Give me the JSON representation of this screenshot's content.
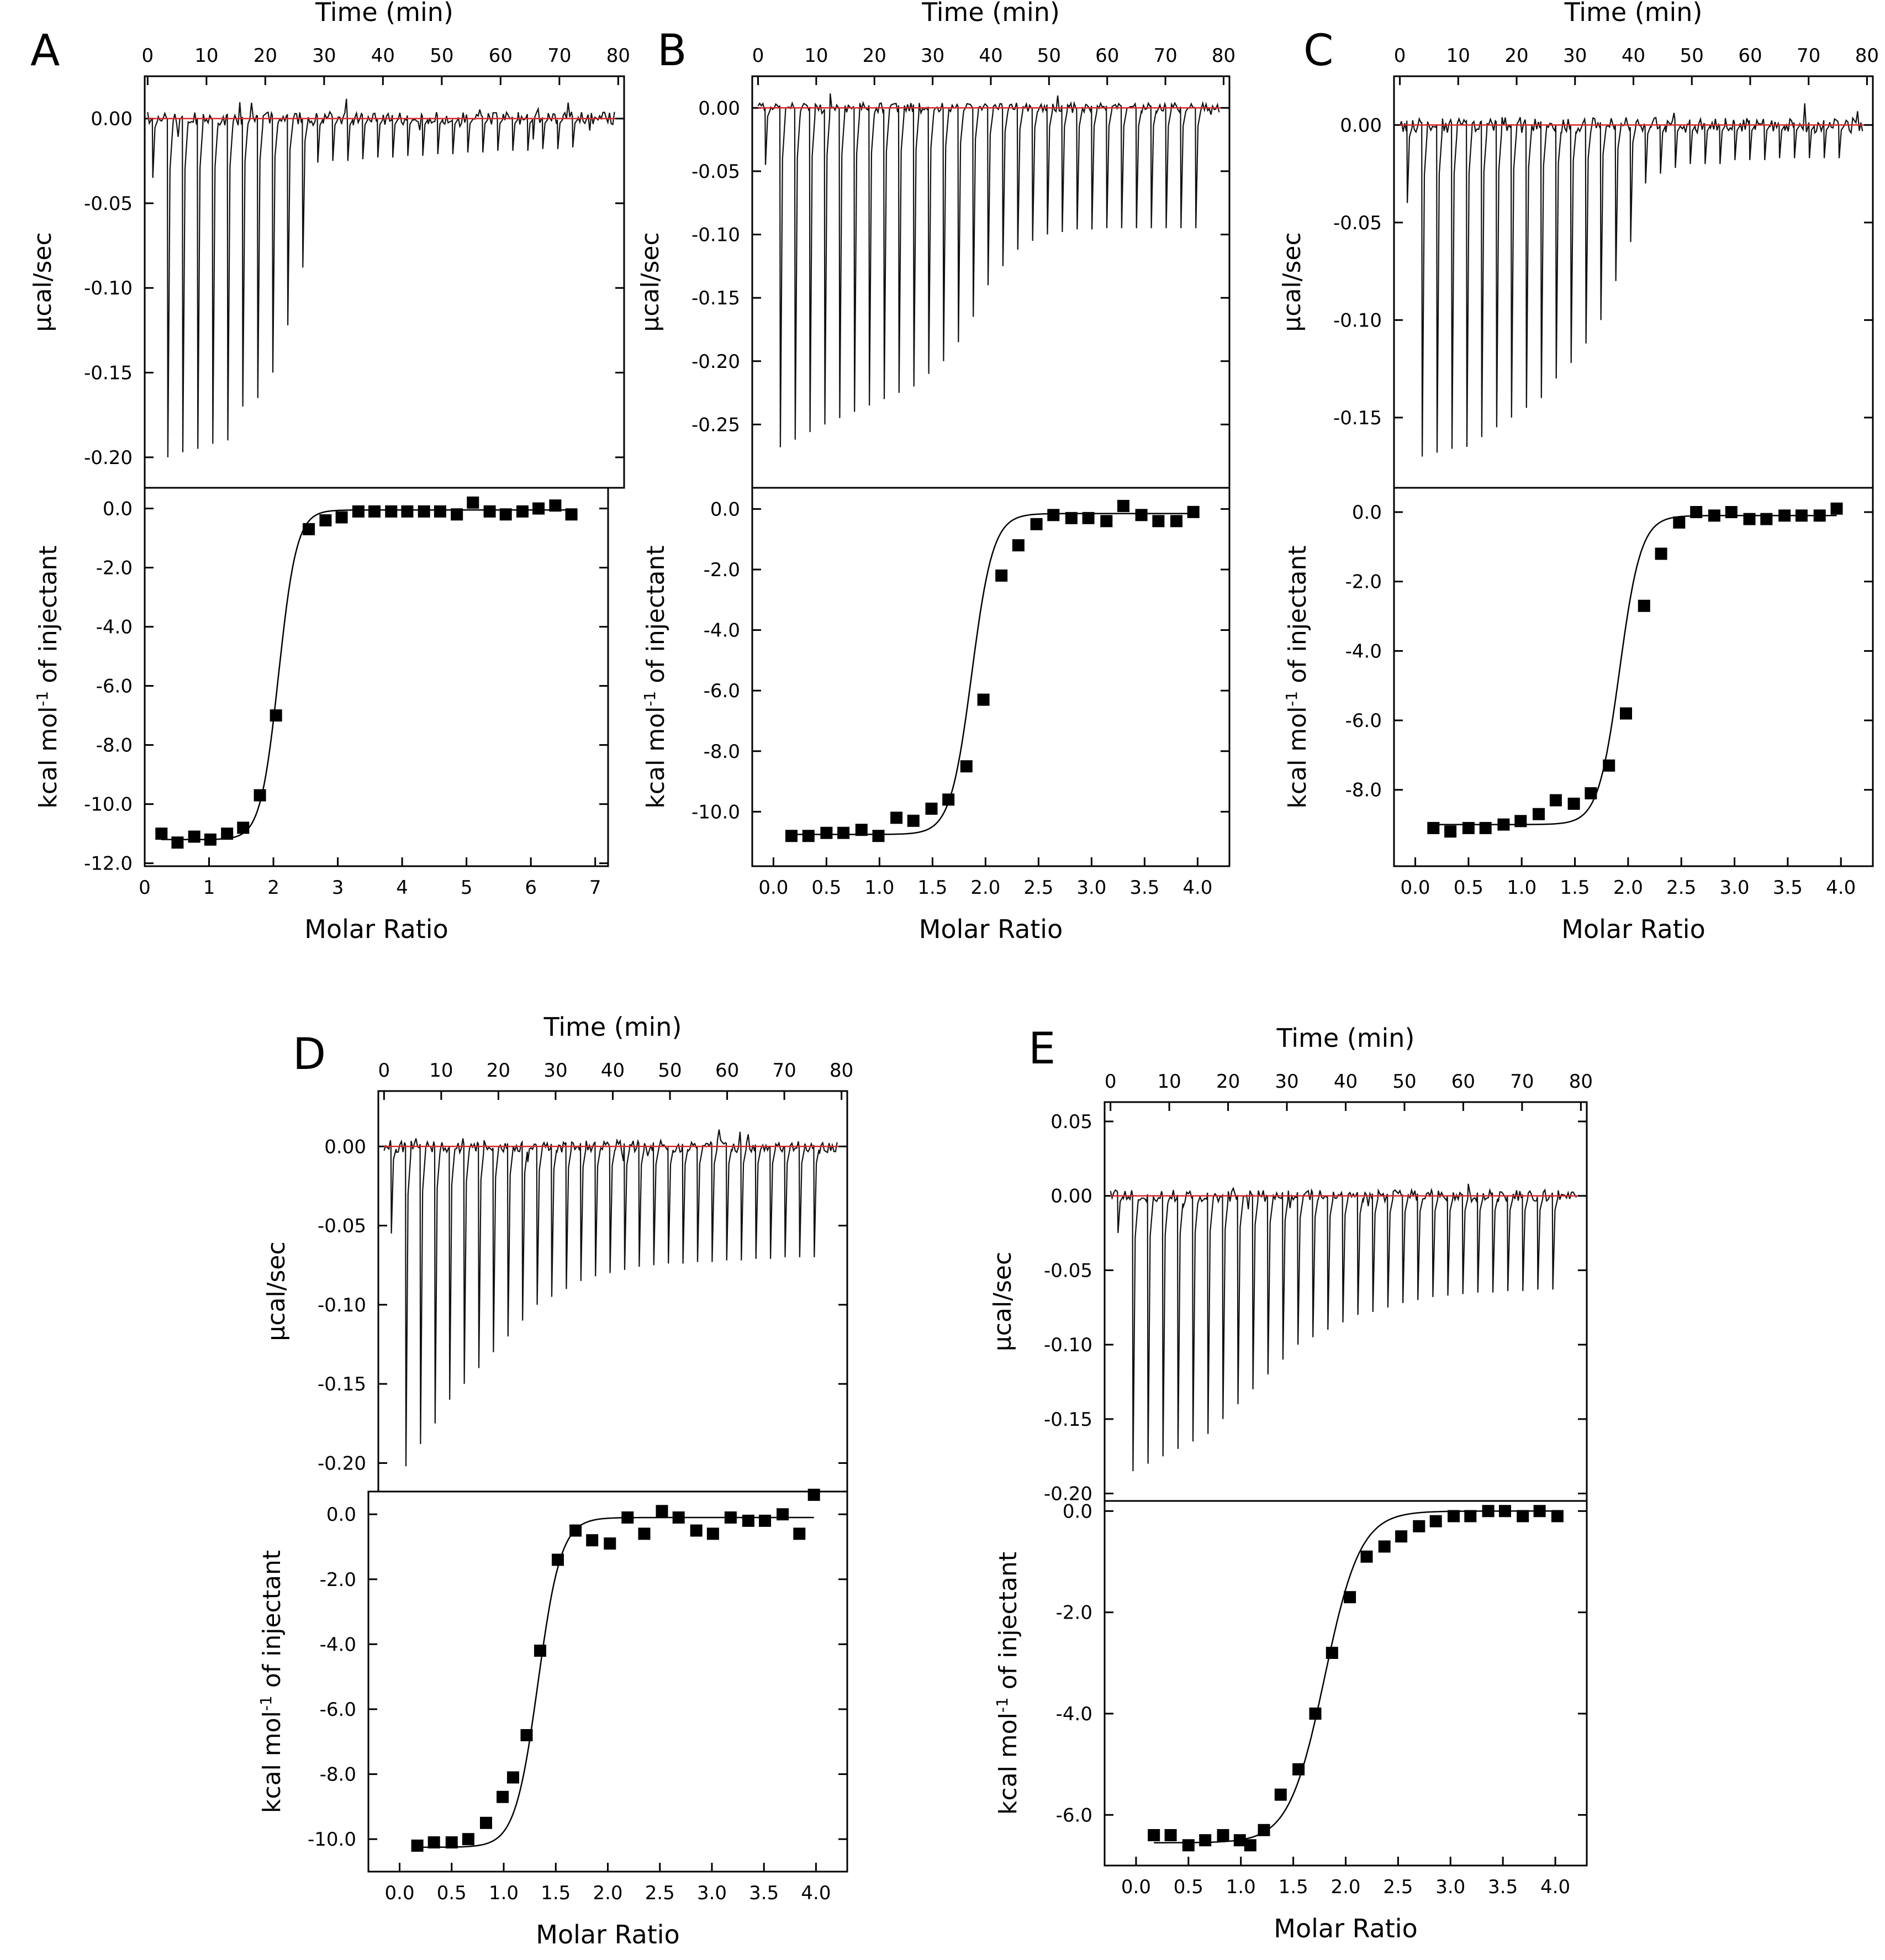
{
  "figure": {
    "common": {
      "time_label": "Time (min)",
      "molar_label": "Molar Ratio",
      "ucal_label": "µcal/sec",
      "kcal_label_main": "kcal mol",
      "kcal_label_sup": "-1",
      "kcal_label_rest": " of injectant",
      "baseline_color": "#d9262c",
      "trace_color": "#111111",
      "fit_color": "#000000",
      "point_color": "#000000"
    }
  },
  "chart_data": [
    {
      "panel": "A",
      "type": "line",
      "title": "A",
      "raw": {
        "xlabel": "Time (min)",
        "ylabel": "µcal/sec",
        "xlim": [
          -0.5,
          81
        ],
        "ylim": [
          -0.218,
          0.025
        ],
        "xticks": [
          0,
          10,
          20,
          30,
          40,
          50,
          60,
          70,
          80
        ],
        "xtick_labels": [
          "0",
          "10",
          "20",
          "30",
          "40",
          "50",
          "60",
          "70",
          "80"
        ],
        "yticks": [
          0.0,
          -0.05,
          -0.1,
          -0.15,
          -0.2
        ],
        "ytick_labels": [
          "0.00",
          "-0.05",
          "-0.10",
          "-0.15",
          "-0.20"
        ],
        "injection_start_min": 0.8,
        "injection_interval_min": 2.55,
        "peaks": [
          -0.035,
          -0.2,
          -0.197,
          -0.195,
          -0.192,
          -0.19,
          -0.17,
          -0.165,
          -0.15,
          -0.122,
          -0.088,
          -0.026,
          -0.025,
          -0.025,
          -0.024,
          -0.023,
          -0.023,
          -0.022,
          -0.022,
          -0.021,
          -0.021,
          -0.02,
          -0.02,
          -0.019,
          -0.019,
          -0.019,
          -0.018,
          -0.018,
          -0.017
        ]
      },
      "binding": {
        "xlabel": "Molar Ratio",
        "ylabel": "kcal mol-1 of injectant",
        "xlim": [
          0,
          7.2
        ],
        "ylim": [
          -12.1,
          0.7
        ],
        "xticks": [
          0,
          1,
          2,
          3,
          4,
          5,
          6,
          7
        ],
        "xtick_labels": [
          "0",
          "1",
          "2",
          "3",
          "4",
          "5",
          "6",
          "7"
        ],
        "yticks": [
          0,
          -2,
          -4,
          -6,
          -8,
          -10,
          -12
        ],
        "ytick_labels": [
          "0.0",
          "-2.0",
          "-4.0",
          "-6.0",
          "-8.0",
          "-10.0",
          "-12.0"
        ],
        "x": [
          0.26,
          0.51,
          0.77,
          1.02,
          1.28,
          1.53,
          1.79,
          2.04,
          2.55,
          2.81,
          3.06,
          3.32,
          3.57,
          3.83,
          4.08,
          4.34,
          4.59,
          4.85,
          5.1,
          5.36,
          5.61,
          5.87,
          6.12,
          6.38,
          6.63
        ],
        "y": [
          -11.0,
          -11.3,
          -11.1,
          -11.2,
          -11.0,
          -10.8,
          -9.7,
          -7.0,
          -0.7,
          -0.4,
          -0.3,
          -0.1,
          -0.1,
          -0.1,
          -0.1,
          -0.1,
          -0.1,
          -0.2,
          0.2,
          -0.1,
          -0.2,
          -0.1,
          0.0,
          0.1,
          -0.2
        ],
        "fit": {
          "low": -11.2,
          "high": -0.05,
          "center": 2.08,
          "width": 0.14
        }
      }
    },
    {
      "panel": "B",
      "type": "line",
      "title": "B",
      "raw": {
        "xlabel": "Time (min)",
        "ylabel": "µcal/sec",
        "xlim": [
          -1,
          81
        ],
        "ylim": [
          -0.3,
          0.025
        ],
        "xticks": [
          0,
          10,
          20,
          30,
          40,
          50,
          60,
          70,
          80
        ],
        "xtick_labels": [
          "0",
          "10",
          "20",
          "30",
          "40",
          "50",
          "60",
          "70",
          "80"
        ],
        "yticks": [
          0.0,
          -0.05,
          -0.1,
          -0.15,
          -0.2,
          -0.25
        ],
        "ytick_labels": [
          "0.00",
          "-0.05",
          "-0.10",
          "-0.15",
          "-0.20",
          "-0.25"
        ],
        "injection_start_min": 1.2,
        "injection_interval_min": 2.55,
        "peaks": [
          -0.045,
          -0.268,
          -0.262,
          -0.256,
          -0.25,
          -0.245,
          -0.24,
          -0.235,
          -0.23,
          -0.225,
          -0.22,
          -0.21,
          -0.2,
          -0.185,
          -0.165,
          -0.14,
          -0.125,
          -0.112,
          -0.105,
          -0.1,
          -0.098,
          -0.096,
          -0.096,
          -0.095,
          -0.095,
          -0.095,
          -0.095,
          -0.095,
          -0.095,
          -0.095
        ]
      },
      "binding": {
        "xlabel": "Molar Ratio",
        "ylabel": "kcal mol-1 of injectant",
        "xlim": [
          -0.2,
          4.3
        ],
        "ylim": [
          -11.8,
          0.7
        ],
        "xticks": [
          0,
          0.5,
          1,
          1.5,
          2,
          2.5,
          3,
          3.5,
          4
        ],
        "xtick_labels": [
          "0.0",
          "0.5",
          "1.0",
          "1.5",
          "2.0",
          "2.5",
          "3.0",
          "3.5",
          "4.0"
        ],
        "yticks": [
          0,
          -2,
          -4,
          -6,
          -8,
          -10
        ],
        "ytick_labels": [
          "0.0",
          "-2.0",
          "-4.0",
          "-6.0",
          "-8.0",
          "-10.0"
        ],
        "x": [
          0.17,
          0.33,
          0.5,
          0.66,
          0.83,
          0.99,
          1.16,
          1.32,
          1.49,
          1.65,
          1.82,
          1.98,
          2.15,
          2.31,
          2.48,
          2.64,
          2.81,
          2.97,
          3.14,
          3.3,
          3.47,
          3.63,
          3.8,
          3.96
        ],
        "y": [
          -10.8,
          -10.8,
          -10.7,
          -10.7,
          -10.6,
          -10.8,
          -10.2,
          -10.3,
          -9.9,
          -9.6,
          -8.5,
          -6.3,
          -2.2,
          -1.2,
          -0.5,
          -0.2,
          -0.3,
          -0.3,
          -0.4,
          0.1,
          -0.2,
          -0.4,
          -0.4,
          -0.1
        ],
        "fit": {
          "low": -10.75,
          "high": -0.15,
          "center": 1.87,
          "width": 0.1
        }
      }
    },
    {
      "panel": "C",
      "type": "line",
      "title": "C",
      "raw": {
        "xlabel": "Time (min)",
        "ylabel": "µcal/sec",
        "xlim": [
          -1,
          81
        ],
        "ylim": [
          -0.186,
          0.025
        ],
        "xticks": [
          0,
          10,
          20,
          30,
          40,
          50,
          60,
          70,
          80
        ],
        "xtick_labels": [
          "0",
          "10",
          "20",
          "30",
          "40",
          "50",
          "60",
          "70",
          "80"
        ],
        "yticks": [
          0.0,
          -0.05,
          -0.1,
          -0.15
        ],
        "ytick_labels": [
          "0.00",
          "-0.05",
          "-0.10",
          "-0.15"
        ],
        "injection_start_min": 1.2,
        "injection_interval_min": 2.55,
        "peaks": [
          -0.04,
          -0.17,
          -0.168,
          -0.166,
          -0.165,
          -0.16,
          -0.155,
          -0.15,
          -0.145,
          -0.14,
          -0.13,
          -0.122,
          -0.112,
          -0.1,
          -0.08,
          -0.06,
          -0.03,
          -0.025,
          -0.022,
          -0.02,
          -0.02,
          -0.02,
          -0.018,
          -0.018,
          -0.018,
          -0.017,
          -0.017,
          -0.017,
          -0.017,
          -0.017
        ]
      },
      "binding": {
        "xlabel": "Molar Ratio",
        "ylabel": "kcal mol-1 of injectant",
        "xlim": [
          -0.2,
          4.3
        ],
        "ylim": [
          -10.2,
          0.7
        ],
        "xticks": [
          0,
          0.5,
          1,
          1.5,
          2,
          2.5,
          3,
          3.5,
          4
        ],
        "xtick_labels": [
          "0.0",
          "0.5",
          "1.0",
          "1.5",
          "2.0",
          "2.5",
          "3.0",
          "3.5",
          "4.0"
        ],
        "yticks": [
          0,
          -2,
          -4,
          -6,
          -8
        ],
        "ytick_labels": [
          "0.0",
          "-2.0",
          "-4.0",
          "-6.0",
          "-8.0"
        ],
        "x": [
          0.17,
          0.33,
          0.5,
          0.66,
          0.83,
          0.99,
          1.16,
          1.32,
          1.49,
          1.65,
          1.82,
          1.98,
          2.15,
          2.31,
          2.48,
          2.64,
          2.81,
          2.97,
          3.14,
          3.3,
          3.47,
          3.63,
          3.8,
          3.96
        ],
        "y": [
          -9.1,
          -9.2,
          -9.1,
          -9.1,
          -9.0,
          -8.9,
          -8.7,
          -8.3,
          -8.4,
          -8.1,
          -7.3,
          -5.8,
          -2.7,
          -1.2,
          -0.3,
          0.0,
          -0.1,
          0.0,
          -0.2,
          -0.2,
          -0.1,
          -0.1,
          -0.1,
          0.1
        ],
        "fit": {
          "low": -9.0,
          "high": -0.1,
          "center": 1.92,
          "width": 0.1
        }
      }
    },
    {
      "panel": "D",
      "type": "line",
      "title": "D",
      "raw": {
        "xlabel": "Time (min)",
        "ylabel": "µcal/sec",
        "xlim": [
          -1,
          81
        ],
        "ylim": [
          -0.218,
          0.035
        ],
        "xticks": [
          0,
          10,
          20,
          30,
          40,
          50,
          60,
          70,
          80
        ],
        "xtick_labels": [
          "0",
          "10",
          "20",
          "30",
          "40",
          "50",
          "60",
          "70",
          "80"
        ],
        "yticks": [
          0.0,
          -0.05,
          -0.1,
          -0.15,
          -0.2
        ],
        "ytick_labels": [
          "0.00",
          "-0.05",
          "-0.10",
          "-0.15",
          "-0.20"
        ],
        "injection_start_min": 1.2,
        "injection_interval_min": 2.55,
        "peaks": [
          -0.055,
          -0.202,
          -0.188,
          -0.175,
          -0.16,
          -0.15,
          -0.14,
          -0.13,
          -0.12,
          -0.11,
          -0.1,
          -0.095,
          -0.09,
          -0.085,
          -0.082,
          -0.08,
          -0.078,
          -0.076,
          -0.075,
          -0.074,
          -0.074,
          -0.073,
          -0.073,
          -0.072,
          -0.072,
          -0.071,
          -0.071,
          -0.07,
          -0.07,
          -0.07
        ]
      },
      "binding": {
        "xlabel": "Molar Ratio",
        "ylabel": "kcal mol-1 of injectant",
        "xlim": [
          -0.3,
          4.3
        ],
        "ylim": [
          -11.0,
          0.7
        ],
        "xticks": [
          0,
          0.5,
          1,
          1.5,
          2,
          2.5,
          3,
          3.5,
          4
        ],
        "xtick_labels": [
          "0.0",
          "0.5",
          "1.0",
          "1.5",
          "2.0",
          "2.5",
          "3.0",
          "3.5",
          "4.0"
        ],
        "yticks": [
          0,
          -2,
          -4,
          -6,
          -8,
          -10
        ],
        "ytick_labels": [
          "0.0",
          "-2.0",
          "-4.0",
          "-6.0",
          "-8.0",
          "-10.0"
        ],
        "x": [
          0.17,
          0.33,
          0.5,
          0.66,
          0.83,
          0.99,
          1.09,
          1.22,
          1.35,
          1.52,
          1.69,
          1.85,
          2.02,
          2.19,
          2.35,
          2.52,
          2.68,
          2.85,
          3.01,
          3.18,
          3.35,
          3.51,
          3.68,
          3.84,
          3.98
        ],
        "y": [
          -10.2,
          -10.1,
          -10.1,
          -10.0,
          -9.5,
          -8.7,
          -8.1,
          -6.8,
          -4.2,
          -1.4,
          -0.5,
          -0.8,
          -0.9,
          -0.1,
          -0.6,
          0.1,
          -0.1,
          -0.5,
          -0.6,
          -0.1,
          -0.2,
          -0.2,
          0.0,
          -0.6,
          0.6
        ],
        "fit": {
          "low": -10.25,
          "high": -0.1,
          "center": 1.33,
          "width": 0.11
        }
      }
    },
    {
      "panel": "E",
      "type": "line",
      "title": "E",
      "raw": {
        "xlabel": "Time (min)",
        "ylabel": "µcal/sec",
        "xlim": [
          -1,
          81
        ],
        "ylim": [
          -0.205,
          0.063
        ],
        "xticks": [
          0,
          10,
          20,
          30,
          40,
          50,
          60,
          70,
          80
        ],
        "xtick_labels": [
          "0",
          "10",
          "20",
          "30",
          "40",
          "50",
          "60",
          "70",
          "80"
        ],
        "yticks": [
          0.05,
          0.0,
          -0.05,
          -0.1,
          -0.15,
          -0.2
        ],
        "ytick_labels": [
          "0.05",
          "0.00",
          "-0.05",
          "-0.10",
          "-0.15",
          "-0.20"
        ],
        "injection_start_min": 1.2,
        "injection_interval_min": 2.55,
        "peaks": [
          -0.025,
          -0.185,
          -0.18,
          -0.175,
          -0.17,
          -0.165,
          -0.16,
          -0.15,
          -0.14,
          -0.13,
          -0.12,
          -0.11,
          -0.1,
          -0.095,
          -0.09,
          -0.085,
          -0.08,
          -0.078,
          -0.075,
          -0.072,
          -0.07,
          -0.068,
          -0.067,
          -0.066,
          -0.065,
          -0.065,
          -0.064,
          -0.064,
          -0.063,
          -0.063
        ]
      },
      "binding": {
        "xlabel": "Molar Ratio",
        "ylabel": "kcal mol-1 of injectant",
        "xlim": [
          -0.3,
          4.3
        ],
        "ylim": [
          -7.0,
          0.2
        ],
        "xticks": [
          0,
          0.5,
          1,
          1.5,
          2,
          2.5,
          3,
          3.5,
          4
        ],
        "xtick_labels": [
          "0.0",
          "0.5",
          "1.0",
          "1.5",
          "2.0",
          "2.5",
          "3.0",
          "3.5",
          "4.0"
        ],
        "yticks": [
          0,
          -2,
          -4,
          -6
        ],
        "ytick_labels": [
          "0.0",
          "-2.0",
          "-4.0",
          "-6.0"
        ],
        "x": [
          0.17,
          0.33,
          0.5,
          0.66,
          0.83,
          0.99,
          1.09,
          1.22,
          1.38,
          1.55,
          1.71,
          1.87,
          2.04,
          2.2,
          2.37,
          2.53,
          2.7,
          2.86,
          3.03,
          3.19,
          3.36,
          3.52,
          3.69,
          3.85,
          4.02
        ],
        "y": [
          -6.4,
          -6.4,
          -6.6,
          -6.5,
          -6.4,
          -6.5,
          -6.6,
          -6.3,
          -5.6,
          -5.1,
          -4.0,
          -2.8,
          -1.7,
          -0.9,
          -0.7,
          -0.5,
          -0.3,
          -0.2,
          -0.1,
          -0.1,
          0.0,
          0.0,
          -0.1,
          0.0,
          -0.1
        ],
        "fit": {
          "low": -6.55,
          "high": 0.0,
          "center": 1.8,
          "width": 0.17
        }
      }
    }
  ]
}
